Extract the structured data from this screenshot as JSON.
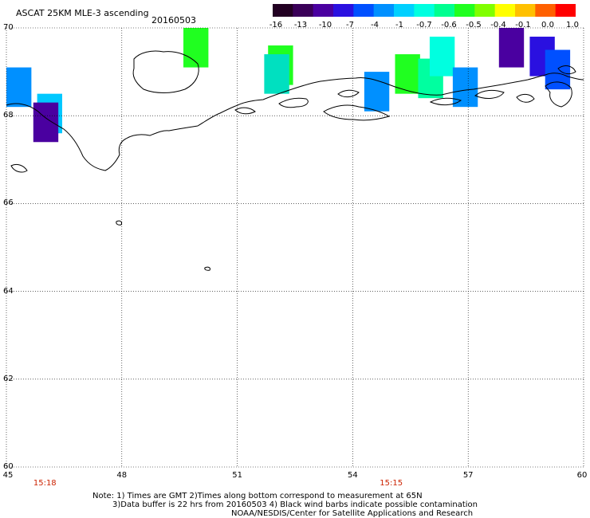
{
  "header": {
    "title": "ASCAT 25KM MLE-3 ascending",
    "date": "20160503"
  },
  "colorbar": {
    "labels": [
      "-16",
      "-13",
      "-10",
      "-7",
      "-4",
      "-1",
      "-0.7",
      "-0.6",
      "-0.5",
      "-0.4",
      "-0.1",
      "0.0",
      "1.0"
    ],
    "colors": [
      "#220022",
      "#3a0058",
      "#4a00a0",
      "#2a10e0",
      "#0050ff",
      "#0090ff",
      "#00d0ff",
      "#00ffe0",
      "#00ff90",
      "#20ff20",
      "#80ff00",
      "#ffff00",
      "#ffc000",
      "#ff6000",
      "#ff0000"
    ]
  },
  "axes": {
    "lat_labels": [
      "70",
      "68",
      "66",
      "64",
      "62",
      "60"
    ],
    "lon_labels": [
      "45",
      "48",
      "51",
      "54",
      "57",
      "60"
    ],
    "lat_range": [
      60,
      70
    ],
    "lon_range": [
      45,
      60
    ],
    "grid": "dotted"
  },
  "times": [
    {
      "label": "15:18",
      "lon": 46
    },
    {
      "label": "15:15",
      "lon": 55
    }
  ],
  "notes": {
    "line1": "Note: 1) Times are GMT 2)Times along bottom correspond to measurement at 65N",
    "line2": "3)Data buffer is 22 hrs from 20160503 4) Black wind barbs indicate possible contamination",
    "line3": "NOAA/NESDIS/Center for Satellite Applications and Research"
  },
  "cells": [
    {
      "lon": 45.0,
      "lat": 69.1,
      "color": "#0090ff"
    },
    {
      "lon": 45.8,
      "lat": 68.5,
      "color": "#00c8ff"
    },
    {
      "lon": 45.7,
      "lat": 68.3,
      "color": "#4a00a0"
    },
    {
      "lon": 49.6,
      "lat": 70.0,
      "color": "#20ff20"
    },
    {
      "lon": 51.8,
      "lat": 69.6,
      "color": "#20ff20"
    },
    {
      "lon": 51.7,
      "lat": 69.4,
      "color": "#00e0c0"
    },
    {
      "lon": 54.3,
      "lat": 69.0,
      "color": "#0090ff"
    },
    {
      "lon": 55.1,
      "lat": 69.4,
      "color": "#20ff20"
    },
    {
      "lon": 55.7,
      "lat": 69.3,
      "color": "#00ffa0"
    },
    {
      "lon": 56.0,
      "lat": 69.8,
      "color": "#00ffe0"
    },
    {
      "lon": 56.6,
      "lat": 69.1,
      "color": "#0090ff"
    },
    {
      "lon": 57.8,
      "lat": 70.0,
      "color": "#4a00a0"
    },
    {
      "lon": 58.6,
      "lat": 69.8,
      "color": "#2a10e0"
    },
    {
      "lon": 59.0,
      "lat": 69.5,
      "color": "#0050ff"
    }
  ]
}
